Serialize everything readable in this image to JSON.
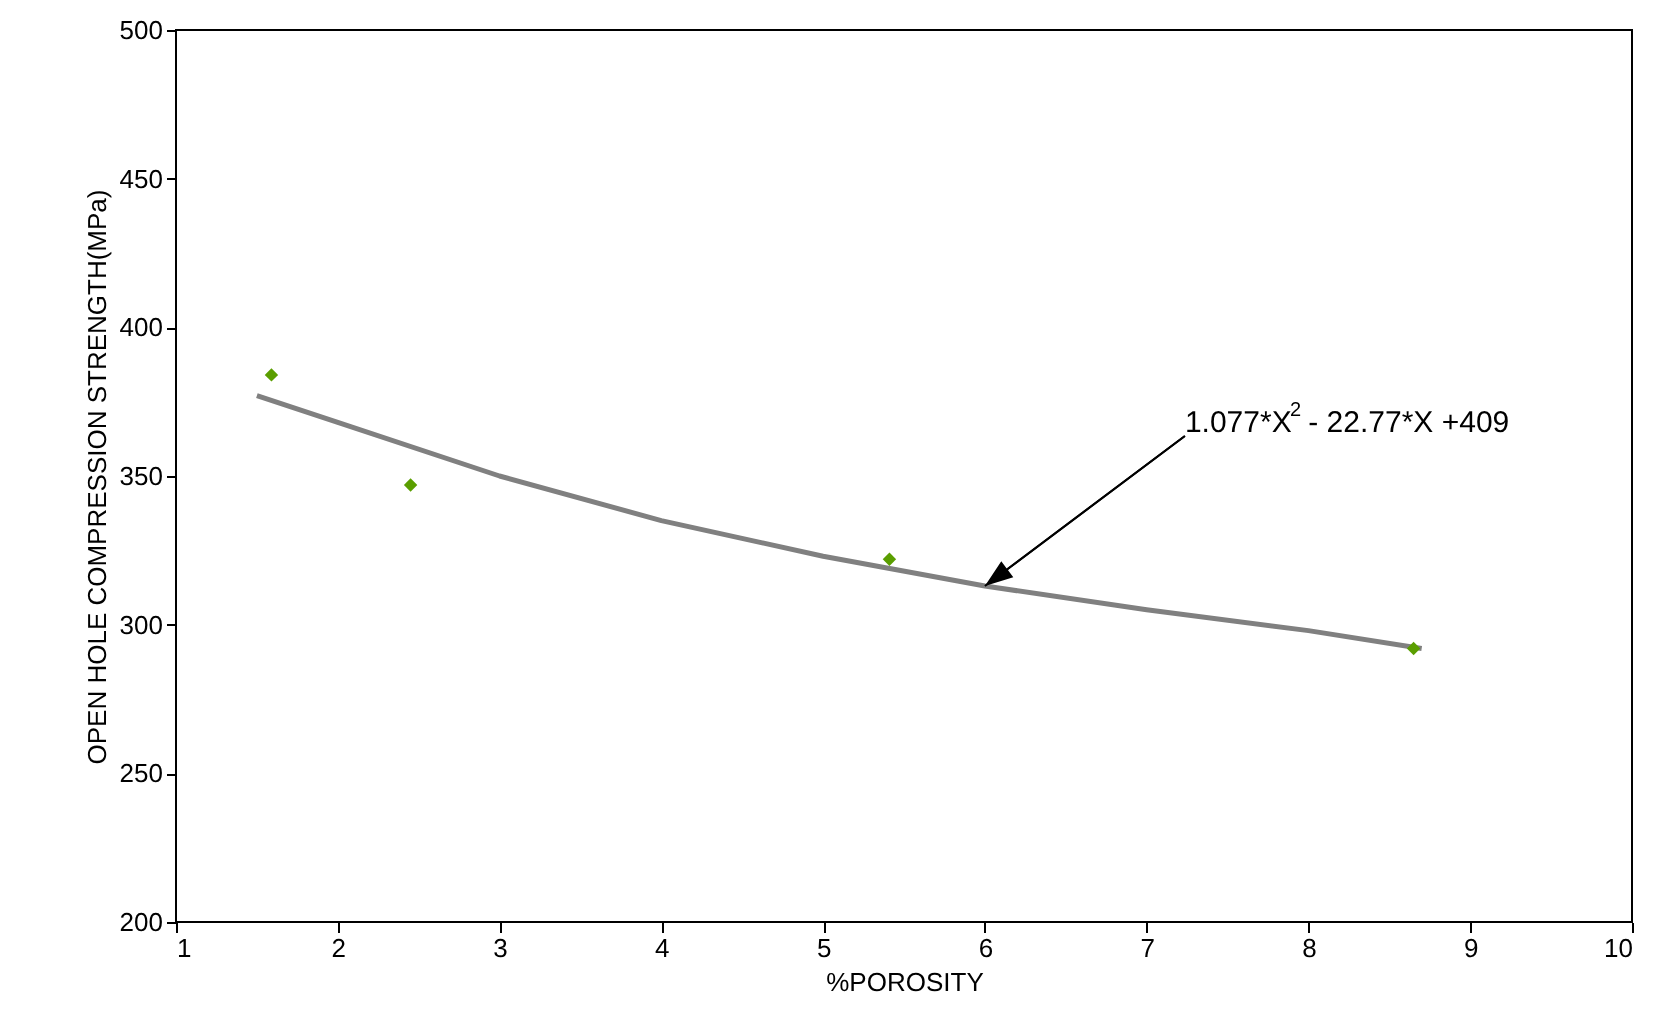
{
  "chart_data": {
    "type": "scatter",
    "xlabel": "%POROSITY",
    "ylabel": "OPEN HOLE COMPRESSION STRENGTH(MPa)",
    "xlim": [
      1,
      10
    ],
    "xticks": [
      1,
      2,
      3,
      4,
      5,
      6,
      7,
      8,
      9,
      10
    ],
    "ylim": [
      200,
      500
    ],
    "yticks": [
      200,
      250,
      300,
      350,
      400,
      450,
      500
    ],
    "grid": false,
    "series": [
      {
        "type": "scatter",
        "color": "#5a9e00",
        "marker": "diamond",
        "x": [
          1.59,
          2.45,
          5.41,
          8.65
        ],
        "values": [
          384,
          347,
          322,
          292
        ]
      },
      {
        "type": "line",
        "color": "#808080",
        "line_style": "solid",
        "marker": "none",
        "x": [
          1.5,
          2,
          3,
          4,
          5,
          6,
          7,
          8,
          8.7
        ],
        "values": [
          377,
          368,
          350,
          335,
          323,
          313,
          305,
          298,
          292
        ]
      }
    ],
    "annotations": [
      {
        "text": "1.077*X$^{2}$ - 22.77*X +409",
        "x": 6,
        "y": 313
      }
    ]
  }
}
